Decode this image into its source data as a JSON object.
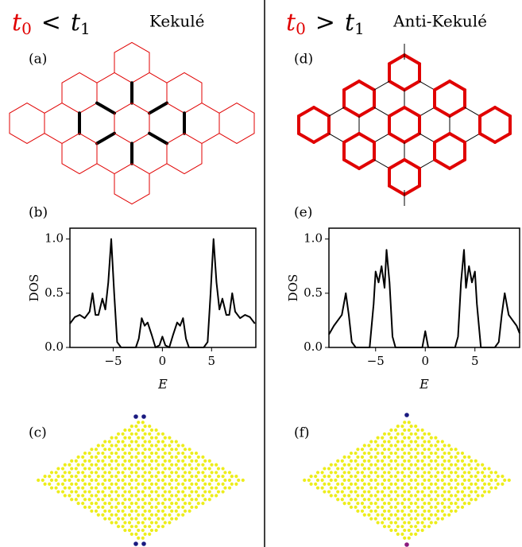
{
  "columns": [
    {
      "condition": {
        "lhs": {
          "base": "t",
          "sub": "0"
        },
        "op": "<",
        "rhs": {
          "base": "t",
          "sub": "1"
        }
      },
      "name": "Kekulé",
      "panels": [
        "(a)",
        "(b)",
        "(c)"
      ]
    },
    {
      "condition": {
        "lhs": {
          "base": "t",
          "sub": "0"
        },
        "op": ">",
        "rhs": {
          "base": "t",
          "sub": "1"
        }
      },
      "name": "Anti-Kekulé",
      "panels": [
        "(d)",
        "(e)",
        "(f)"
      ]
    }
  ],
  "chart_data": [
    {
      "type": "line",
      "xlabel": "E",
      "ylabel": "DOS",
      "color": "#000000",
      "x": [
        -9.4,
        -8.9,
        -8.4,
        -7.9,
        -7.4,
        -7.1,
        -6.8,
        -6.5,
        -6.1,
        -5.8,
        -5.5,
        -5.2,
        -4.9,
        -4.6,
        -4.2,
        -2.7,
        -2.4,
        -2.1,
        -1.8,
        -1.5,
        -1.1,
        -0.7,
        -0.3,
        0,
        0.3,
        0.7,
        1.1,
        1.5,
        1.8,
        2.1,
        2.4,
        2.7,
        4.2,
        4.6,
        4.9,
        5.2,
        5.5,
        5.8,
        6.1,
        6.5,
        6.8,
        7.1,
        7.4,
        7.9,
        8.4,
        8.9,
        9.4
      ],
      "values": [
        0.22,
        0.28,
        0.3,
        0.27,
        0.33,
        0.5,
        0.3,
        0.3,
        0.45,
        0.35,
        0.6,
        1,
        0.5,
        0.05,
        0,
        0,
        0.08,
        0.27,
        0.2,
        0.23,
        0.12,
        0,
        0.02,
        0.1,
        0.02,
        0,
        0.12,
        0.23,
        0.2,
        0.27,
        0.08,
        0,
        0,
        0.05,
        0.5,
        1,
        0.6,
        0.35,
        0.45,
        0.3,
        0.3,
        0.5,
        0.33,
        0.27,
        0.3,
        0.28,
        0.22
      ],
      "xlim": [
        -9.4,
        9.5
      ],
      "ylim": [
        0,
        1.1
      ],
      "xticks": [
        {
          "value": -5,
          "label": "−5"
        },
        0,
        5
      ],
      "yticks": [
        {
          "value": 0,
          "label": "0.0"
        },
        {
          "value": 0.5,
          "label": "0.5"
        },
        {
          "value": 1,
          "label": "1.0"
        }
      ]
    },
    {
      "type": "line",
      "xlabel": "E",
      "ylabel": "DOS",
      "color": "#000000",
      "x": [
        -9.7,
        -9.2,
        -8.8,
        -8.4,
        -8.0,
        -7.7,
        -7.4,
        -7.0,
        -5.6,
        -5.2,
        -5.0,
        -4.7,
        -4.4,
        -4.1,
        -3.9,
        -3.6,
        -3.3,
        -3.0,
        -0.3,
        0,
        0.3,
        3.0,
        3.3,
        3.6,
        3.9,
        4.1,
        4.4,
        4.7,
        5.0,
        5.2,
        5.6,
        7.0,
        7.4,
        7.7,
        8.0,
        8.4,
        8.8,
        9.2,
        9.5
      ],
      "values": [
        0.12,
        0.2,
        0.25,
        0.3,
        0.5,
        0.3,
        0.05,
        0,
        0,
        0.4,
        0.7,
        0.6,
        0.75,
        0.55,
        0.9,
        0.6,
        0.1,
        0,
        0,
        0.15,
        0,
        0,
        0.1,
        0.6,
        0.9,
        0.55,
        0.75,
        0.6,
        0.7,
        0.4,
        0,
        0,
        0.05,
        0.3,
        0.5,
        0.3,
        0.25,
        0.2,
        0.13
      ],
      "xlim": [
        -9.7,
        9.5
      ],
      "ylim": [
        0,
        1.1
      ],
      "xticks": [
        {
          "value": -5,
          "label": "−5"
        },
        0,
        5
      ],
      "yticks": [
        {
          "value": 0,
          "label": "0.0"
        },
        {
          "value": 0.5,
          "label": "0.5"
        },
        {
          "value": 1,
          "label": "1.0"
        }
      ]
    }
  ]
}
